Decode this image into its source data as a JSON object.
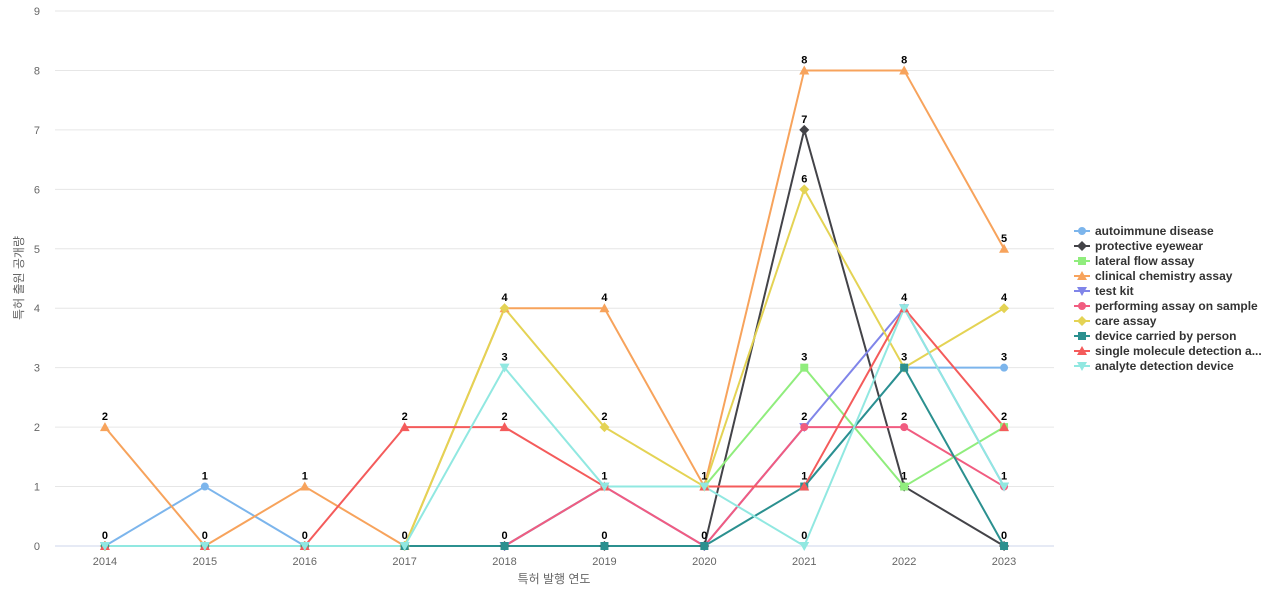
{
  "chart_data": {
    "type": "line",
    "title": "",
    "xlabel": "특허 발행 연도",
    "ylabel": "특허 출원 공개량",
    "categories": [
      "2014",
      "2015",
      "2016",
      "2017",
      "2018",
      "2019",
      "2020",
      "2021",
      "2022",
      "2023"
    ],
    "ylim": [
      0,
      9
    ],
    "yticks": [
      0,
      1,
      2,
      3,
      4,
      5,
      6,
      7,
      8,
      9
    ],
    "grid": true,
    "legend_position": "right",
    "series": [
      {
        "name": "autoimmune disease",
        "color": "#7cb5ec",
        "marker": "circle",
        "values": [
          0,
          1,
          0,
          0,
          0,
          1,
          1,
          1,
          3,
          3
        ]
      },
      {
        "name": "protective eyewear",
        "color": "#434348",
        "marker": "diamond",
        "values": [
          0,
          0,
          0,
          0,
          0,
          0,
          0,
          7,
          1,
          0
        ]
      },
      {
        "name": "lateral flow assay",
        "color": "#90ed7d",
        "marker": "square",
        "values": [
          0,
          0,
          0,
          0,
          0,
          1,
          1,
          3,
          1,
          2
        ]
      },
      {
        "name": "clinical chemistry assay",
        "color": "#f7a35c",
        "marker": "triangle",
        "values": [
          2,
          0,
          1,
          0,
          4,
          4,
          1,
          8,
          8,
          5
        ]
      },
      {
        "name": "test kit",
        "color": "#8085e9",
        "marker": "triangle-down",
        "values": [
          0,
          0,
          0,
          0,
          0,
          1,
          0,
          2,
          4,
          1
        ]
      },
      {
        "name": "performing assay on sample",
        "color": "#f15c80",
        "marker": "circle",
        "values": [
          0,
          0,
          0,
          0,
          0,
          1,
          0,
          2,
          2,
          1
        ]
      },
      {
        "name": "care assay",
        "color": "#e4d354",
        "marker": "diamond",
        "values": [
          0,
          0,
          0,
          0,
          4,
          2,
          1,
          6,
          3,
          4
        ]
      },
      {
        "name": "device carried by person",
        "color": "#2b908f",
        "marker": "square",
        "values": [
          0,
          0,
          0,
          0,
          0,
          0,
          0,
          1,
          3,
          0
        ]
      },
      {
        "name": "single molecule detection a...",
        "color": "#f45b5b",
        "marker": "triangle",
        "values": [
          0,
          0,
          0,
          2,
          2,
          1,
          1,
          1,
          4,
          2
        ]
      },
      {
        "name": "analyte detection device",
        "color": "#91e8e1",
        "marker": "triangle-down",
        "values": [
          0,
          0,
          0,
          0,
          3,
          1,
          1,
          0,
          4,
          1
        ]
      }
    ],
    "data_labels": [
      {
        "x": "2014",
        "value": 2
      },
      {
        "x": "2014",
        "value": 0
      },
      {
        "x": "2015",
        "value": 1
      },
      {
        "x": "2015",
        "value": 0
      },
      {
        "x": "2016",
        "value": 1
      },
      {
        "x": "2016",
        "value": 0
      },
      {
        "x": "2017",
        "value": 2
      },
      {
        "x": "2017",
        "value": 0
      },
      {
        "x": "2018",
        "value": 4
      },
      {
        "x": "2018",
        "value": 3
      },
      {
        "x": "2018",
        "value": 2
      },
      {
        "x": "2018",
        "value": 0
      },
      {
        "x": "2019",
        "value": 4
      },
      {
        "x": "2019",
        "value": 2
      },
      {
        "x": "2019",
        "value": 1
      },
      {
        "x": "2019",
        "value": 0
      },
      {
        "x": "2020",
        "value": 1
      },
      {
        "x": "2020",
        "value": 0
      },
      {
        "x": "2021",
        "value": 8
      },
      {
        "x": "2021",
        "value": 7
      },
      {
        "x": "2021",
        "value": 6
      },
      {
        "x": "2021",
        "value": 3
      },
      {
        "x": "2021",
        "value": 2
      },
      {
        "x": "2021",
        "value": 1
      },
      {
        "x": "2021",
        "value": 0
      },
      {
        "x": "2022",
        "value": 8
      },
      {
        "x": "2022",
        "value": 4
      },
      {
        "x": "2022",
        "value": 3
      },
      {
        "x": "2022",
        "value": 2
      },
      {
        "x": "2022",
        "value": 1
      },
      {
        "x": "2023",
        "value": 5
      },
      {
        "x": "2023",
        "value": 4
      },
      {
        "x": "2023",
        "value": 3
      },
      {
        "x": "2023",
        "value": 2
      },
      {
        "x": "2023",
        "value": 1
      },
      {
        "x": "2023",
        "value": 0
      }
    ]
  }
}
